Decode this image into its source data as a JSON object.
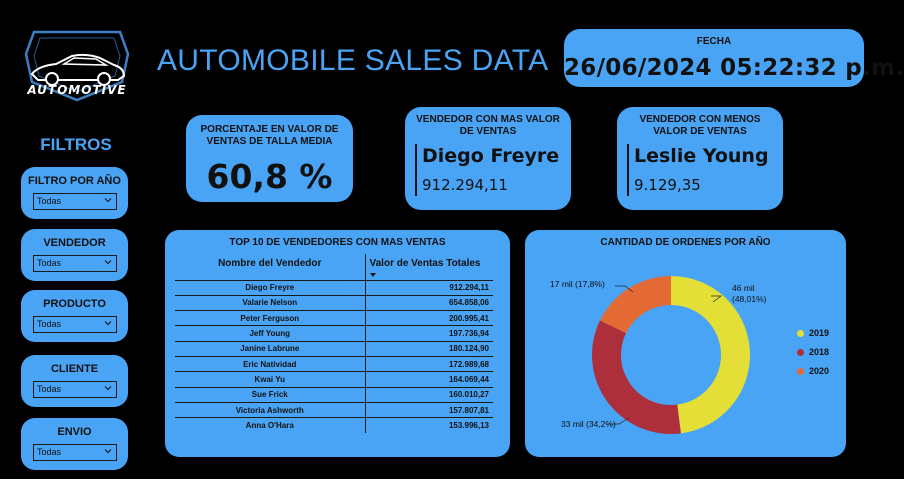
{
  "logo": {
    "text": "AUTOMOTIVE"
  },
  "header": {
    "title": "AUTOMOBILE SALES DATA"
  },
  "date_card": {
    "label": "FECHA",
    "value": "26/06/2024 05:22:32 p.m."
  },
  "filters": {
    "title": "FILTROS",
    "items": [
      {
        "label": "FILTRO POR AÑO",
        "value": "Todas"
      },
      {
        "label": "VENDEDOR",
        "value": "Todas"
      },
      {
        "label": "PRODUCTO",
        "value": "Todas"
      },
      {
        "label": "CLIENTE",
        "value": "Todas"
      },
      {
        "label": "ENVIO",
        "value": "Todas"
      }
    ]
  },
  "kpis": {
    "medium_size": {
      "label": "PORCENTAJE EN VALOR DE VENTAS DE TALLA MEDIA",
      "value": "60,8 %"
    },
    "max_seller": {
      "label": "VENDEDOR CON MAS VALOR DE VENTAS",
      "name": "Diego Freyre",
      "value": "912.294,11"
    },
    "min_seller": {
      "label": "VENDEDOR CON MENOS VALOR DE VENTAS",
      "name": "Leslie Young",
      "value": "9.129,35"
    }
  },
  "top10": {
    "title": "TOP 10 DE VENDEDORES CON MAS VENTAS",
    "columns": [
      "Nombre del Vendedor",
      "Valor de Ventas Totales"
    ],
    "rows": [
      [
        "Diego Freyre",
        "912.294,11"
      ],
      [
        "Valarie Nelson",
        "654.858,06"
      ],
      [
        "Peter Ferguson",
        "200.995,41"
      ],
      [
        "Jeff Young",
        "197.736,94"
      ],
      [
        "Janine Labrune",
        "180.124,90"
      ],
      [
        "Eric Natividad",
        "172.989,68"
      ],
      [
        "Kwai Yu",
        "164.069,44"
      ],
      [
        "Sue Frick",
        "160.010,27"
      ],
      [
        "Victoria Ashworth",
        "157.807,81"
      ],
      [
        "Anna O'Hara",
        "153.996,13"
      ]
    ]
  },
  "orders_chart": {
    "title": "CANTIDAD DE ORDENES POR AÑO",
    "legend": [
      "2019",
      "2018",
      "2020"
    ],
    "labels": [
      {
        "line1": "46 mil",
        "line2": "(48,01%)"
      },
      {
        "line1": "33 mil (34,2%)",
        "line2": ""
      },
      {
        "line1": "17 mil (17,8%)",
        "line2": ""
      }
    ]
  },
  "chart_data": {
    "type": "pie",
    "title": "CANTIDAD DE ORDENES POR AÑO",
    "categories": [
      "2019",
      "2018",
      "2020"
    ],
    "values": [
      48.01,
      34.2,
      17.8
    ],
    "colors": [
      "#e3df37",
      "#ad2f3b",
      "#e36a34"
    ],
    "data_labels": [
      "46 mil (48,01%)",
      "33 mil (34,2%)",
      "17 mil (17,8%)"
    ],
    "legend_position": "right"
  },
  "colors": {
    "accent": "#4aa4f5",
    "background": "#000000"
  }
}
